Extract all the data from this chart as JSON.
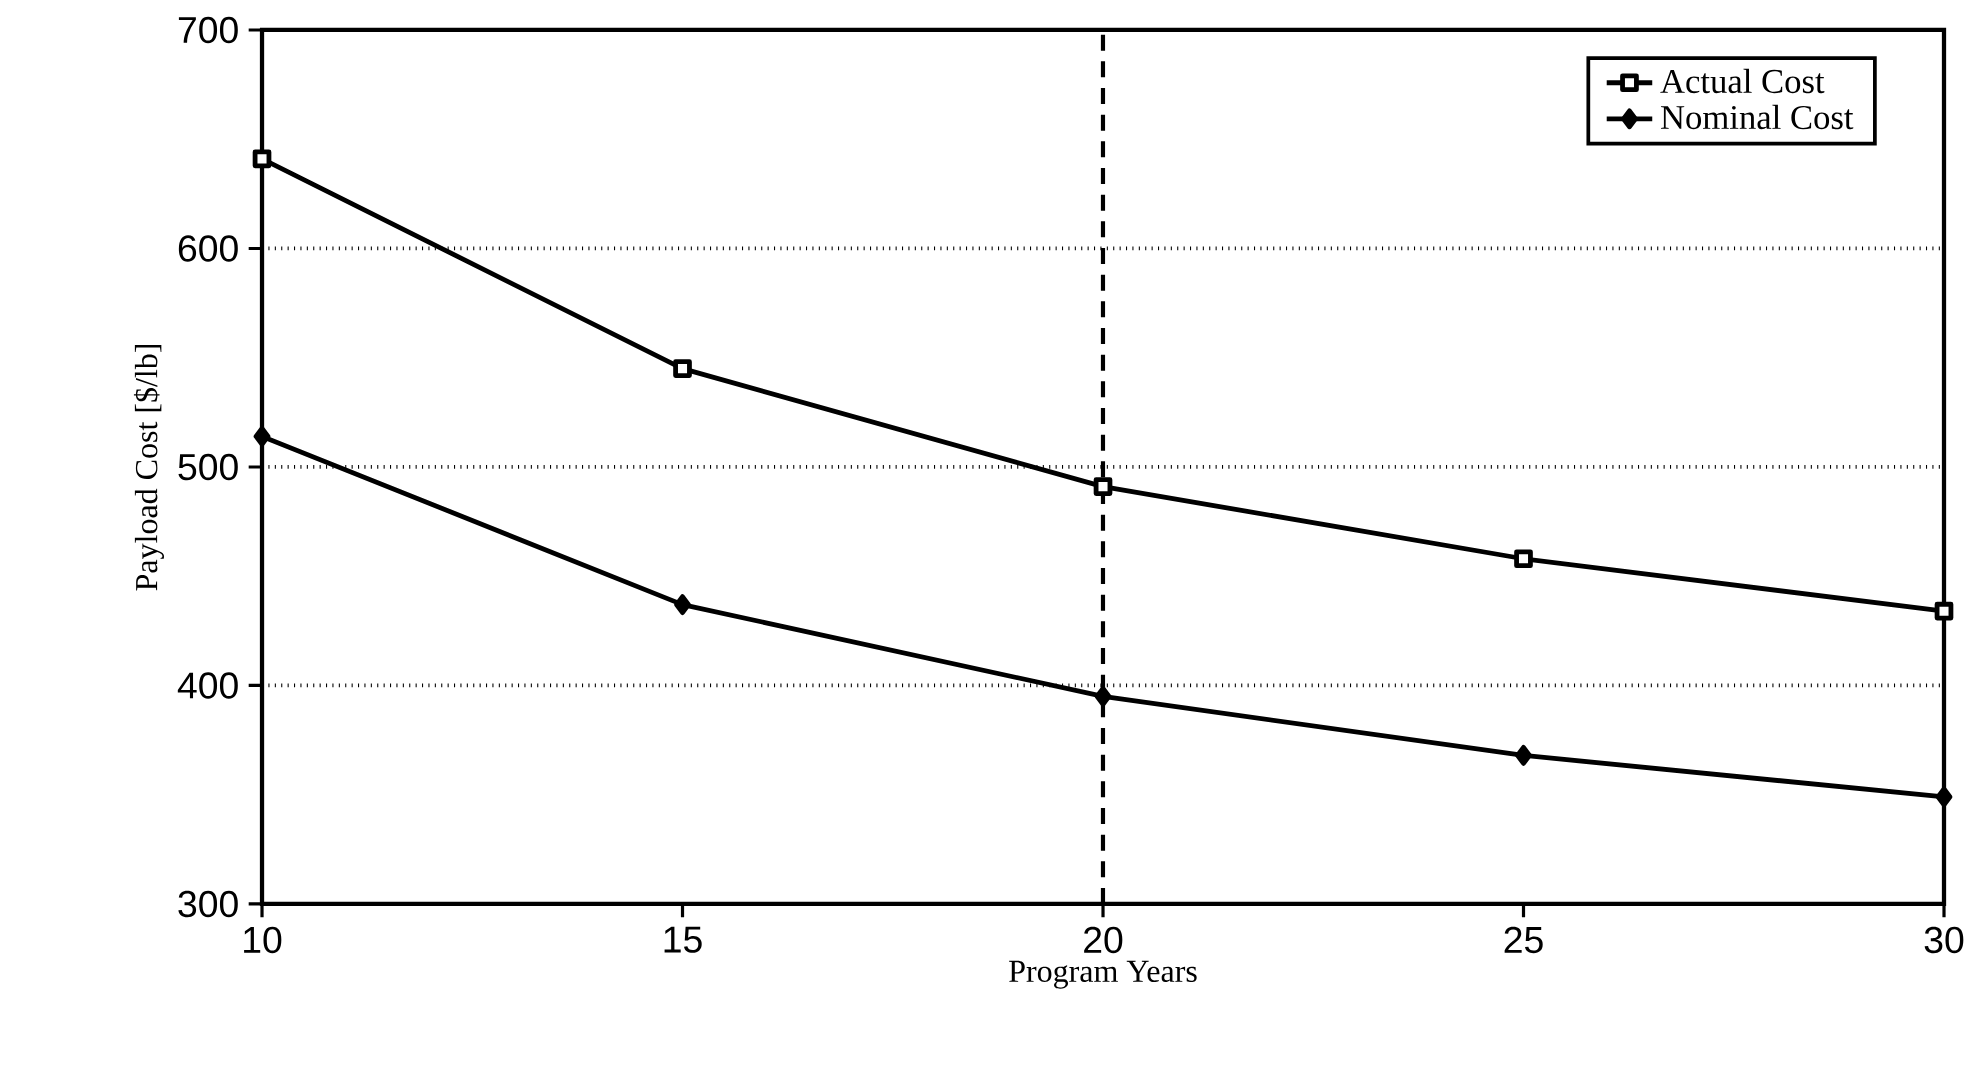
{
  "chart_data": {
    "type": "line",
    "xlabel": "Program Years",
    "ylabel": "Payload Cost [$/lb]",
    "x": [
      10,
      15,
      20,
      25,
      30
    ],
    "series": [
      {
        "name": "Actual Cost",
        "color": "#000000",
        "marker": "square",
        "values": [
          641,
          545,
          491,
          458,
          434
        ]
      },
      {
        "name": "Nominal Cost",
        "color": "#000000",
        "marker": "diamond",
        "values": [
          514,
          437,
          395,
          368,
          349
        ]
      }
    ],
    "xlim": [
      10,
      30
    ],
    "xticks": [
      10,
      15,
      20,
      25,
      30
    ],
    "ylim": [
      300,
      700
    ],
    "yticks": [
      300,
      400,
      500,
      600,
      700
    ],
    "grid": "y",
    "legend": "top right",
    "line_style": "solid",
    "ref_lines": [
      {
        "axis": "x",
        "value": 20,
        "line_style": "dashed"
      }
    ]
  }
}
